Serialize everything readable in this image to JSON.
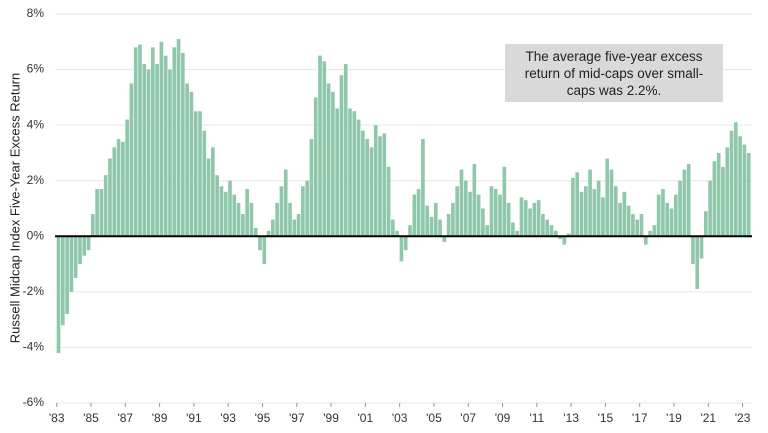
{
  "chart_data": {
    "type": "bar",
    "y_label": "Russell Midcap Index Five-Year Excess Return",
    "annotation": "The average five-year excess return of mid-caps over small-caps was 2.2%.",
    "color": "#8fc7ab",
    "x": [
      1983,
      1983.25,
      1983.5,
      1983.75,
      1984,
      1984.25,
      1984.5,
      1984.75,
      1985,
      1985.25,
      1985.5,
      1985.75,
      1986,
      1986.25,
      1986.5,
      1986.75,
      1987,
      1987.25,
      1987.5,
      1987.75,
      1988,
      1988.25,
      1988.5,
      1988.75,
      1989,
      1989.25,
      1989.5,
      1989.75,
      1990,
      1990.25,
      1990.5,
      1990.75,
      1991,
      1991.25,
      1991.5,
      1991.75,
      1992,
      1992.25,
      1992.5,
      1992.75,
      1993,
      1993.25,
      1993.5,
      1993.75,
      1994,
      1994.25,
      1994.5,
      1994.75,
      1995,
      1995.25,
      1995.5,
      1995.75,
      1996,
      1996.25,
      1996.5,
      1996.75,
      1997,
      1997.25,
      1997.5,
      1997.75,
      1998,
      1998.25,
      1998.5,
      1998.75,
      1999,
      1999.25,
      1999.5,
      1999.75,
      2000,
      2000.25,
      2000.5,
      2000.75,
      2001,
      2001.25,
      2001.5,
      2001.75,
      2002,
      2002.25,
      2002.5,
      2002.75,
      2003,
      2003.25,
      2003.5,
      2003.75,
      2004,
      2004.25,
      2004.5,
      2004.75,
      2005,
      2005.25,
      2005.5,
      2005.75,
      2006,
      2006.25,
      2006.5,
      2006.75,
      2007,
      2007.25,
      2007.5,
      2007.75,
      2008,
      2008.25,
      2008.5,
      2008.75,
      2009,
      2009.25,
      2009.5,
      2009.75,
      2010,
      2010.25,
      2010.5,
      2010.75,
      2011,
      2011.25,
      2011.5,
      2011.75,
      2012,
      2012.25,
      2012.5,
      2012.75,
      2013,
      2013.25,
      2013.5,
      2013.75,
      2014,
      2014.25,
      2014.5,
      2014.75,
      2015,
      2015.25,
      2015.5,
      2015.75,
      2016,
      2016.25,
      2016.5,
      2016.75,
      2017,
      2017.25,
      2017.5,
      2017.75,
      2018,
      2018.25,
      2018.5,
      2018.75,
      2019,
      2019.25,
      2019.5,
      2019.75,
      2020,
      2020.25,
      2020.5,
      2020.75,
      2021,
      2021.25,
      2021.5,
      2021.75,
      2022,
      2022.25,
      2022.5,
      2022.75,
      2023,
      2023.25
    ],
    "values": [
      -4.2,
      -3.2,
      -2.8,
      -2.0,
      -1.5,
      -1.0,
      -0.7,
      -0.5,
      0.8,
      1.7,
      1.7,
      2.2,
      2.8,
      3.2,
      3.5,
      3.4,
      4.2,
      5.5,
      6.8,
      6.9,
      6.2,
      6.0,
      6.8,
      6.2,
      7.0,
      6.5,
      6.0,
      6.8,
      7.1,
      6.6,
      5.5,
      5.2,
      4.5,
      4.5,
      3.8,
      2.8,
      3.2,
      2.2,
      1.8,
      1.6,
      2.0,
      1.5,
      1.2,
      0.8,
      1.7,
      1.2,
      0.3,
      -0.5,
      -1.0,
      0.2,
      0.6,
      1.2,
      1.8,
      2.4,
      1.2,
      0.6,
      0.8,
      1.8,
      2.0,
      3.5,
      5.0,
      6.5,
      6.3,
      5.5,
      5.2,
      4.6,
      5.8,
      6.2,
      4.6,
      4.5,
      4.2,
      3.8,
      3.5,
      3.2,
      4.0,
      3.6,
      3.7,
      2.5,
      0.6,
      0.2,
      -0.9,
      -0.5,
      0.4,
      1.5,
      1.7,
      3.5,
      1.1,
      0.7,
      1.2,
      0.6,
      -0.2,
      0.8,
      1.2,
      1.8,
      2.4,
      2.0,
      1.6,
      2.6,
      1.5,
      1.0,
      0.4,
      1.8,
      1.7,
      1.5,
      2.5,
      1.2,
      0.5,
      0.2,
      1.4,
      1.3,
      1.0,
      1.2,
      1.3,
      0.8,
      0.6,
      0.4,
      0.2,
      -0.1,
      -0.3,
      0.1,
      2.1,
      2.3,
      1.6,
      1.8,
      2.4,
      1.7,
      2.0,
      1.4,
      2.8,
      2.4,
      1.8,
      1.2,
      1.6,
      1.1,
      0.8,
      0.6,
      0.8,
      -0.3,
      0.2,
      0.4,
      1.5,
      1.7,
      1.2,
      1.0,
      1.5,
      2.0,
      2.4,
      2.6,
      -1.0,
      -1.9,
      -0.8,
      0.9,
      2.0,
      2.7,
      3.0,
      2.5,
      3.2,
      3.8,
      4.1,
      3.6,
      3.3,
      3.0
    ],
    "xlim": [
      1982.9,
      2023.55
    ],
    "xticks": [
      {
        "value": 1983,
        "label": "'83"
      },
      {
        "value": 1985,
        "label": "'85"
      },
      {
        "value": 1987,
        "label": "'87"
      },
      {
        "value": 1989,
        "label": "'89"
      },
      {
        "value": 1991,
        "label": "'91"
      },
      {
        "value": 1993,
        "label": "'93"
      },
      {
        "value": 1995,
        "label": "'95"
      },
      {
        "value": 1997,
        "label": "'97"
      },
      {
        "value": 1999,
        "label": "'99"
      },
      {
        "value": 2001,
        "label": "'01"
      },
      {
        "value": 2003,
        "label": "'03"
      },
      {
        "value": 2005,
        "label": "'05"
      },
      {
        "value": 2007,
        "label": "'07"
      },
      {
        "value": 2009,
        "label": "'09"
      },
      {
        "value": 2011,
        "label": "'11"
      },
      {
        "value": 2013,
        "label": "'13"
      },
      {
        "value": 2015,
        "label": "'15"
      },
      {
        "value": 2017,
        "label": "'17"
      },
      {
        "value": 2019,
        "label": "'19"
      },
      {
        "value": 2021,
        "label": "'21"
      },
      {
        "value": 2023,
        "label": "'23"
      }
    ],
    "ylim": [
      -6,
      8
    ],
    "yticks": [
      {
        "value": -6,
        "label": "-6%"
      },
      {
        "value": -4,
        "label": "-4%"
      },
      {
        "value": -2,
        "label": "-2%"
      },
      {
        "value": 0,
        "label": "0%"
      },
      {
        "value": 2,
        "label": "2%"
      },
      {
        "value": 4,
        "label": "4%"
      },
      {
        "value": 6,
        "label": "6%"
      },
      {
        "value": 8,
        "label": "8%"
      }
    ],
    "grid": true
  }
}
